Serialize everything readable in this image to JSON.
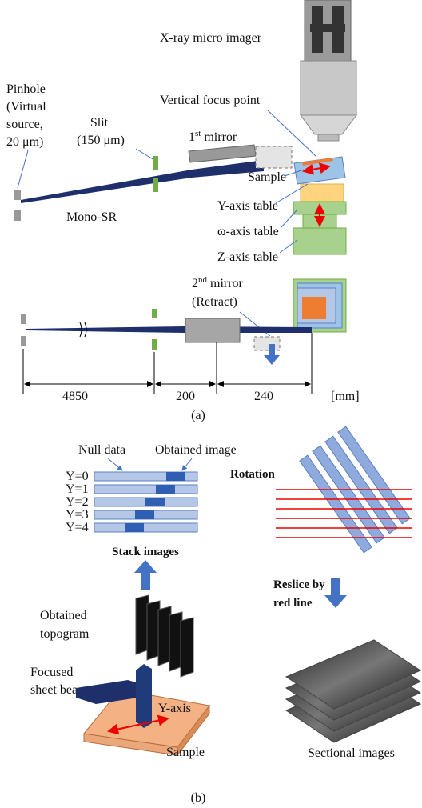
{
  "panel_a": {
    "imager_label": "X-ray micro imager",
    "pinhole_label": [
      "Pinhole",
      "(Virtual",
      "source,",
      "20 μm)"
    ],
    "slit_label": [
      "Slit",
      "(150 μm)"
    ],
    "focus_label": "Vertical focus point",
    "mirror1_label": {
      "number": "1",
      "suffix": "st",
      "text": "mirror"
    },
    "sample_label": "Sample",
    "beam_label": "Mono-SR",
    "table_labels": [
      "Y-axis table",
      "ω-axis table",
      "Z-axis table"
    ],
    "mirror2_label": {
      "number": "2",
      "suffix": "nd",
      "text": "mirror",
      "note": "(Retract)"
    },
    "dimensions": [
      4850,
      200,
      240
    ],
    "unit": "[mm]",
    "caption": "(a)"
  },
  "panel_b": {
    "null_label": "Null data",
    "obtained_label": "Obtained image",
    "rows": [
      "Y=0",
      "Y=1",
      "Y=2",
      "Y=3",
      "Y=4"
    ],
    "stack_label": "Stack images",
    "topogram_label": [
      "Obtained",
      "topogram"
    ],
    "beam_label": [
      "Focused",
      "sheet beam"
    ],
    "axis_label": "Y-axis",
    "sample_label": "Sample",
    "rotation_label": "Rotation",
    "reslice_label": [
      "Reslice by",
      "red line"
    ],
    "sectional_label": "Sectional images",
    "caption": "(b)"
  }
}
